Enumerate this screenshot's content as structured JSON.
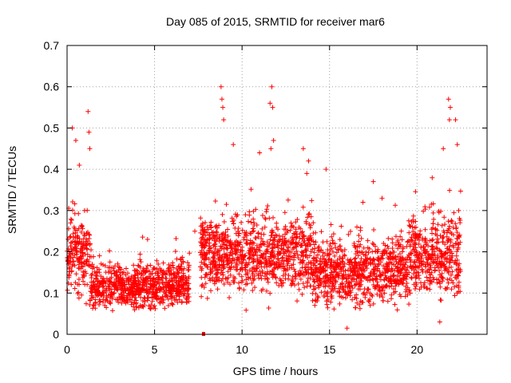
{
  "chart_data": {
    "type": "scatter",
    "title": "Day 085 of 2015, SRMTID for receiver mar6",
    "xlabel": "GPS time / hours",
    "ylabel": "SRMTID / TECUs",
    "xlim": [
      0,
      24
    ],
    "ylim": [
      0,
      0.7
    ],
    "xticks": [
      0,
      5,
      10,
      15,
      20
    ],
    "xtick_labels": [
      "0",
      "5",
      "10",
      "15",
      "20"
    ],
    "yticks": [
      0,
      0.1,
      0.2,
      0.3,
      0.4,
      0.5,
      0.6,
      0.7
    ],
    "ytick_labels": [
      "0",
      "0.1",
      "0.2",
      "0.3",
      "0.4",
      "0.5",
      "0.6",
      "0.7"
    ],
    "grid": true,
    "marker": "+",
    "color": "#ff0000",
    "series": [
      {
        "name": "SRMTID",
        "note": "dense cloud of ~3000 samples (summarised by segment profile)",
        "segments": [
          {
            "t_start": 0.0,
            "t_end": 1.3,
            "typical_low": 0.08,
            "typical_high": 0.3,
            "spread": 0.07
          },
          {
            "t_start": 1.3,
            "t_end": 7.0,
            "typical_low": 0.05,
            "typical_high": 0.18,
            "spread": 0.04
          },
          {
            "t_start": 7.6,
            "t_end": 14.0,
            "typical_low": 0.08,
            "typical_high": 0.3,
            "spread": 0.06
          },
          {
            "t_start": 14.0,
            "t_end": 19.5,
            "typical_low": 0.05,
            "typical_high": 0.25,
            "spread": 0.05
          },
          {
            "t_start": 19.5,
            "t_end": 22.5,
            "typical_low": 0.06,
            "typical_high": 0.32,
            "spread": 0.07
          }
        ],
        "spikes": [
          {
            "x": 0.3,
            "y": 0.5
          },
          {
            "x": 0.5,
            "y": 0.47
          },
          {
            "x": 0.7,
            "y": 0.41
          },
          {
            "x": 1.0,
            "y": 0.3
          },
          {
            "x": 1.2,
            "y": 0.54
          },
          {
            "x": 1.25,
            "y": 0.49
          },
          {
            "x": 1.3,
            "y": 0.45
          },
          {
            "x": 8.8,
            "y": 0.6
          },
          {
            "x": 8.85,
            "y": 0.57
          },
          {
            "x": 8.9,
            "y": 0.55
          },
          {
            "x": 8.95,
            "y": 0.52
          },
          {
            "x": 9.5,
            "y": 0.46
          },
          {
            "x": 11.7,
            "y": 0.6
          },
          {
            "x": 11.6,
            "y": 0.56
          },
          {
            "x": 11.75,
            "y": 0.55
          },
          {
            "x": 11.8,
            "y": 0.47
          },
          {
            "x": 11.65,
            "y": 0.45
          },
          {
            "x": 11.0,
            "y": 0.44
          },
          {
            "x": 13.5,
            "y": 0.45
          },
          {
            "x": 13.8,
            "y": 0.42
          },
          {
            "x": 13.7,
            "y": 0.39
          },
          {
            "x": 14.8,
            "y": 0.4
          },
          {
            "x": 17.5,
            "y": 0.37
          },
          {
            "x": 18.0,
            "y": 0.33
          },
          {
            "x": 21.8,
            "y": 0.57
          },
          {
            "x": 21.9,
            "y": 0.55
          },
          {
            "x": 21.85,
            "y": 0.52
          },
          {
            "x": 22.2,
            "y": 0.52
          },
          {
            "x": 22.3,
            "y": 0.46
          },
          {
            "x": 21.5,
            "y": 0.45
          },
          {
            "x": 0.2,
            "y": 0.27
          },
          {
            "x": 16.0,
            "y": 0.015
          },
          {
            "x": 21.3,
            "y": 0.03
          },
          {
            "x": 4.6,
            "y": 0.23
          },
          {
            "x": 7.3,
            "y": 0.25
          }
        ],
        "markers_on_axis": [
          {
            "x": 7.8,
            "y": 0.0
          }
        ]
      }
    ]
  }
}
